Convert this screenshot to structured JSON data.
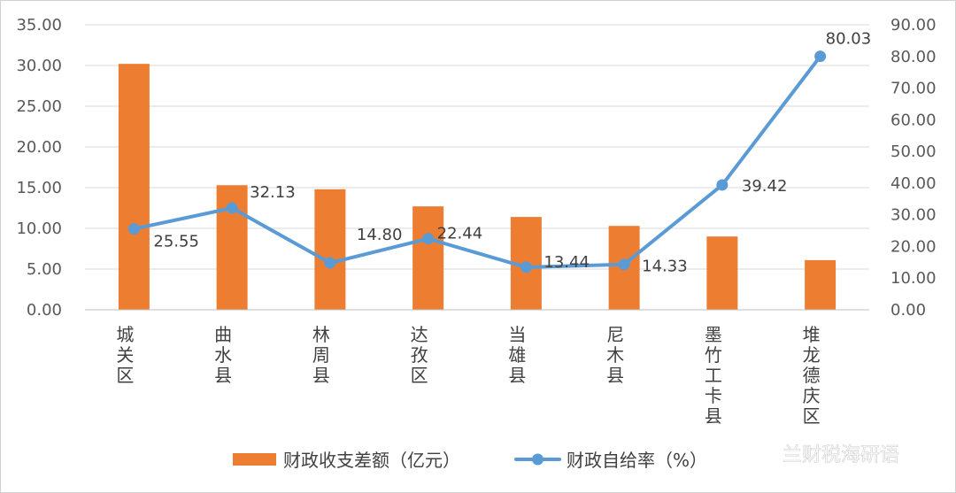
{
  "chart_data": {
    "type": "bar",
    "categories": [
      "城关区",
      "曲水县",
      "林周县",
      "达孜区",
      "当雄县",
      "尼木县",
      "墨竹工卡县",
      "堆龙德庆区"
    ],
    "series": [
      {
        "name": "财政收支差额（亿元）",
        "type": "bar",
        "axis": "left",
        "color": "#ED7D31",
        "values": [
          30.2,
          15.3,
          14.8,
          12.7,
          11.4,
          10.3,
          9.0,
          6.1
        ]
      },
      {
        "name": "财政自给率（%）",
        "type": "line",
        "axis": "right",
        "color": "#5B9BD5",
        "values": [
          25.55,
          32.13,
          14.8,
          22.44,
          13.44,
          14.33,
          39.42,
          80.03
        ],
        "data_labels": [
          "25.55",
          "32.13",
          "14.80",
          "22.44",
          "13.44",
          "14.33",
          "39.42",
          "80.03"
        ]
      }
    ],
    "y_left": {
      "min": 0,
      "max": 35,
      "step": 5,
      "tick_labels": [
        "0.00",
        "5.00",
        "10.00",
        "15.00",
        "20.00",
        "25.00",
        "30.00",
        "35.00"
      ]
    },
    "y_right": {
      "min": 0,
      "max": 90,
      "step": 10,
      "tick_labels": [
        "0.00",
        "10.00",
        "20.00",
        "30.00",
        "40.00",
        "50.00",
        "60.00",
        "70.00",
        "80.00",
        "90.00"
      ]
    },
    "grid": true,
    "legend_position": "bottom"
  },
  "watermark": {
    "text": "兰财税海研语",
    "icon": "wechat-icon"
  }
}
